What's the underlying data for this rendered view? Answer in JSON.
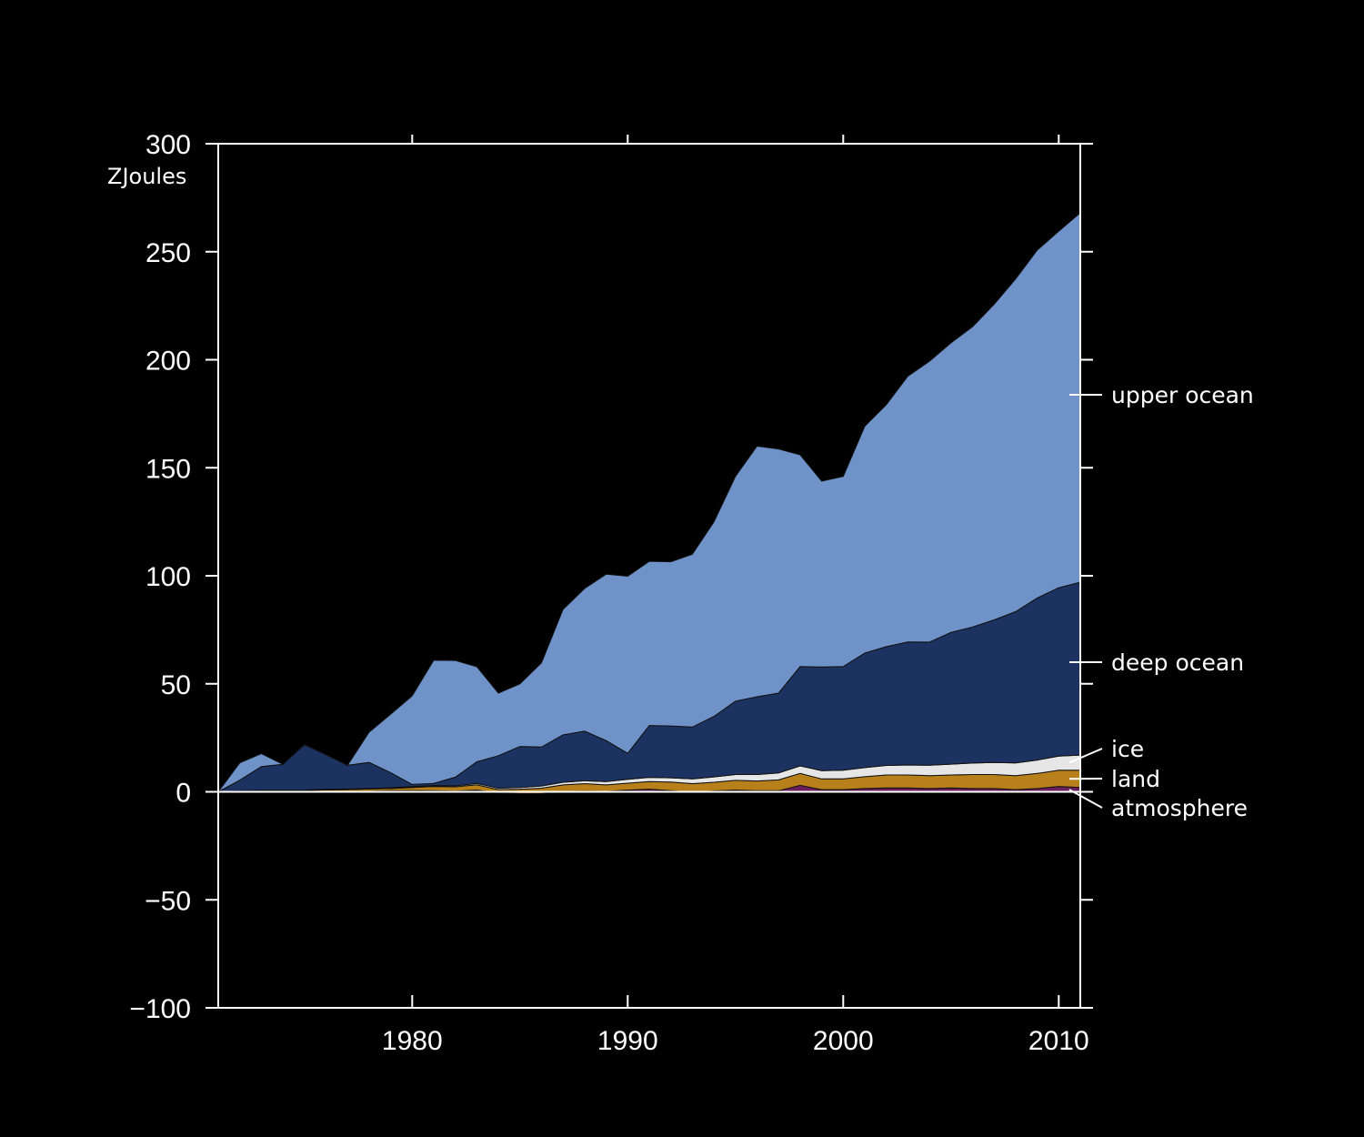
{
  "chart_data": {
    "type": "area",
    "ylabel": "ZJoules",
    "ylim": [
      -100,
      300
    ],
    "xlim": [
      1971,
      2011
    ],
    "yticks": [
      -100,
      -50,
      0,
      50,
      100,
      150,
      200,
      250,
      300
    ],
    "xticks": [
      1980,
      1990,
      2000,
      2010
    ],
    "grid": false,
    "legend": "right (labels pointing at bands)",
    "x": [
      1971,
      1972,
      1973,
      1974,
      1975,
      1976,
      1977,
      1978,
      1979,
      1980,
      1981,
      1982,
      1983,
      1984,
      1985,
      1986,
      1987,
      1988,
      1989,
      1990,
      1991,
      1992,
      1993,
      1994,
      1995,
      1996,
      1997,
      1998,
      1999,
      2000,
      2001,
      2002,
      2003,
      2004,
      2005,
      2006,
      2007,
      2008,
      2009,
      2010,
      2011
    ],
    "stacked": true,
    "series": [
      {
        "name": "atmosphere",
        "color": "#6b1f5c",
        "values": [
          0,
          0,
          0,
          0,
          0,
          0.1,
          0.2,
          0.3,
          0.5,
          0.6,
          0.5,
          0.3,
          0.8,
          -0.5,
          -0.8,
          -0.8,
          0.2,
          0.3,
          0.2,
          0.8,
          1.2,
          0.5,
          -0.2,
          0.4,
          0.8,
          0.5,
          0.5,
          3,
          1,
          1,
          1.5,
          1.8,
          1.8,
          1.5,
          1.8,
          1.5,
          1.5,
          1,
          1.5,
          2.5,
          2
        ]
      },
      {
        "name": "land",
        "color": "#b8801a",
        "values": [
          0,
          0.3,
          0.5,
          0.5,
          0.6,
          0.8,
          0.8,
          1,
          1,
          1.4,
          2,
          2,
          2.5,
          1.5,
          2,
          2.5,
          3,
          3.5,
          3,
          3.2,
          3.5,
          4,
          4,
          4,
          4.5,
          4.5,
          5,
          5.5,
          5,
          5,
          5.5,
          6,
          6,
          6,
          6,
          6.5,
          6.5,
          6.5,
          7,
          7.5,
          8
        ]
      },
      {
        "name": "ice",
        "color": "#e6e6e6",
        "values": [
          0,
          0.1,
          0.2,
          0.2,
          0.2,
          0.3,
          0.3,
          0.3,
          0.4,
          0.4,
          0.4,
          0.5,
          0.6,
          0.7,
          0.8,
          1,
          1.2,
          1.3,
          1.5,
          1.8,
          2,
          2,
          2.2,
          2.5,
          2.7,
          3,
          3.2,
          3.5,
          3.8,
          4,
          4.2,
          4.4,
          4.6,
          4.8,
          5,
          5.3,
          5.6,
          5.9,
          6.2,
          6.5,
          7
        ]
      },
      {
        "name": "deep ocean",
        "color": "#1c3260",
        "values": [
          0,
          5,
          11,
          12,
          21,
          16,
          11,
          12,
          7,
          1,
          1,
          4,
          10,
          15,
          19,
          18,
          22,
          23,
          19,
          12,
          24,
          24,
          24,
          28,
          34,
          36,
          37,
          46,
          48,
          48,
          53,
          55,
          57,
          57,
          61,
          63,
          66,
          70,
          75,
          78,
          80
        ]
      },
      {
        "name": "upper ocean",
        "color": "#6f93c9",
        "values": [
          0,
          8,
          6,
          0,
          0,
          0,
          0,
          14,
          27,
          41,
          57,
          54,
          44,
          29,
          29,
          39,
          58,
          66,
          77,
          82,
          76,
          76,
          80,
          90,
          104,
          116,
          113,
          98,
          86,
          88,
          105,
          112,
          123,
          130,
          134,
          139,
          146,
          154,
          161,
          165,
          171
        ]
      }
    ],
    "legend_labels": [
      "upper ocean",
      "deep ocean",
      "ice",
      "land",
      "atmosphere"
    ]
  }
}
